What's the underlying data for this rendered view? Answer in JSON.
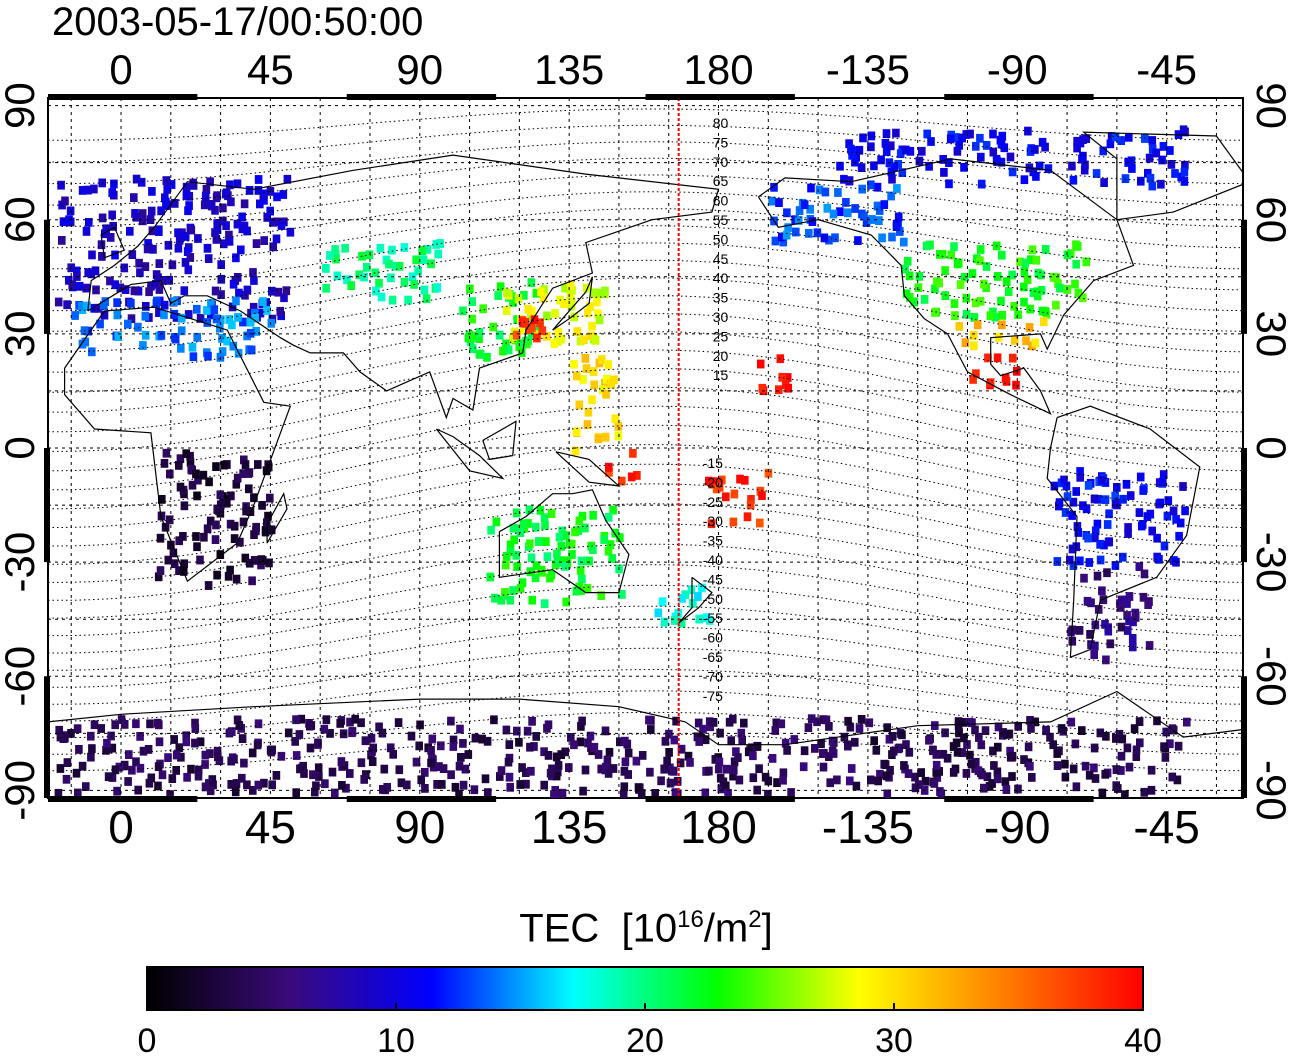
{
  "title": "2003-05-17/00:50:00",
  "map": {
    "lon_ticks_top": [
      "0",
      "45",
      "90",
      "135",
      "180",
      "-135",
      "-90",
      "-45"
    ],
    "lon_ticks_bottom": [
      "0",
      "45",
      "90",
      "135",
      "180",
      "-135",
      "-90",
      "-45"
    ],
    "lat_ticks_left": [
      "90",
      "60",
      "30",
      "0",
      "-30",
      "-60",
      "-90"
    ],
    "lat_ticks_right": [
      "90",
      "60",
      "30",
      "0",
      "-30",
      "-60",
      "-90"
    ],
    "lon_tick_values": [
      0,
      45,
      90,
      135,
      180,
      225,
      270,
      315
    ],
    "lat_tick_values": [
      90,
      60,
      30,
      0,
      -30,
      -60,
      -90
    ],
    "longitude_range": [
      -22,
      338
    ],
    "latitude_range": [
      -92,
      92
    ],
    "terminator_longitude": 168,
    "magnetic_latitude_labels_north": [
      "80",
      "75",
      "70",
      "65",
      "60",
      "55",
      "50",
      "45",
      "40",
      "35",
      "30",
      "25",
      "20",
      "15"
    ],
    "magnetic_latitude_labels_south": [
      "-15",
      "-20",
      "-25",
      "-30",
      "-35",
      "-40",
      "-45",
      "-50",
      "-55",
      "-60",
      "-65",
      "-70",
      "-75"
    ],
    "colors": {
      "grid": "#000000",
      "terminator": "#ff0000",
      "coast": "#000000"
    }
  },
  "colorbar": {
    "label": "TEC",
    "unit_prefix": "[10",
    "unit_exp1": "16",
    "unit_mid": "/m",
    "unit_exp2": "2",
    "unit_suffix": "]",
    "ticks": [
      "0",
      "10",
      "20",
      "30",
      "40"
    ],
    "range": [
      0,
      40
    ],
    "stops": [
      "#000000",
      "#3a0a7a",
      "#0000ff",
      "#00ffff",
      "#00ff00",
      "#ffff00",
      "#ff8000",
      "#ff0000"
    ]
  },
  "chart_data": {
    "type": "heatmap",
    "variable": "TEC",
    "units": "10^16/m^2",
    "value_range": [
      0,
      40
    ],
    "regions": [
      {
        "lon_range": [
          -20,
          50
        ],
        "lat_range": [
          35,
          72
        ],
        "tec": 9
      },
      {
        "lon_range": [
          -15,
          45
        ],
        "lat_range": [
          25,
          40
        ],
        "tec": 14
      },
      {
        "lon_range": [
          60,
          95
        ],
        "lat_range": [
          40,
          55
        ],
        "tec": 20
      },
      {
        "lon_range": [
          100,
          125
        ],
        "lat_range": [
          25,
          45
        ],
        "tec": 22
      },
      {
        "lon_range": [
          115,
          145
        ],
        "lat_range": [
          28,
          45
        ],
        "tec": 28
      },
      {
        "lon_range": [
          118,
          128
        ],
        "lat_range": [
          30,
          35
        ],
        "tec": 38
      },
      {
        "lon_range": [
          135,
          150
        ],
        "lat_range": [
          0,
          25
        ],
        "tec": 30
      },
      {
        "lon_range": [
          145,
          155
        ],
        "lat_range": [
          -10,
          0
        ],
        "tec": 38
      },
      {
        "lon_range": [
          175,
          195
        ],
        "lat_range": [
          -20,
          -5
        ],
        "tec": 38
      },
      {
        "lon_range": [
          190,
          200
        ],
        "lat_range": [
          15,
          25
        ],
        "tec": 40
      },
      {
        "lon_range": [
          110,
          150
        ],
        "lat_range": [
          -40,
          -15
        ],
        "tec": 22
      },
      {
        "lon_range": [
          160,
          178
        ],
        "lat_range": [
          -45,
          -35
        ],
        "tec": 18
      },
      {
        "lon_range": [
          195,
          235
        ],
        "lat_range": [
          55,
          70
        ],
        "tec": 13
      },
      {
        "lon_range": [
          235,
          290
        ],
        "lat_range": [
          35,
          55
        ],
        "tec": 23
      },
      {
        "lon_range": [
          250,
          280
        ],
        "lat_range": [
          28,
          35
        ],
        "tec": 31
      },
      {
        "lon_range": [
          255,
          270
        ],
        "lat_range": [
          15,
          25
        ],
        "tec": 39
      },
      {
        "lon_range": [
          280,
          320
        ],
        "lat_range": [
          -30,
          -5
        ],
        "tec": 11
      },
      {
        "lon_range": [
          285,
          310
        ],
        "lat_range": [
          -55,
          -30
        ],
        "tec": 6
      },
      {
        "lon_range": [
          -20,
          320
        ],
        "lat_range": [
          -90,
          -70
        ],
        "tec": 4
      },
      {
        "lon_range": [
          10,
          45
        ],
        "lat_range": [
          -35,
          0
        ],
        "tec": 3
      },
      {
        "lon_range": [
          215,
          320
        ],
        "lat_range": [
          70,
          85
        ],
        "tec": 11
      }
    ]
  }
}
